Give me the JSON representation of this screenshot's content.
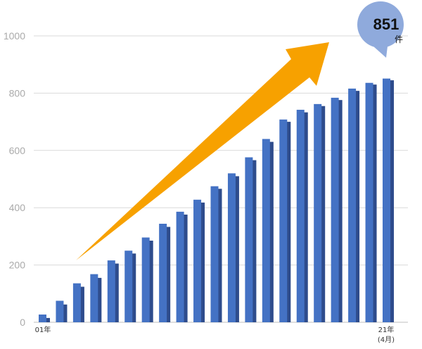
{
  "chart_data": {
    "type": "bar",
    "ylim": [
      0,
      1000
    ],
    "yticks": [
      0,
      200,
      400,
      600,
      800,
      1000
    ],
    "grid": true,
    "x_labels": {
      "first": "01年",
      "last_line1": "21年",
      "last_line2": "(4月)"
    },
    "series": [
      {
        "values": [
          27,
          75,
          136,
          168,
          216,
          250,
          296,
          344,
          386,
          428,
          475,
          520,
          576,
          640,
          708,
          742,
          762,
          784,
          816,
          836,
          851
        ]
      },
      {
        "values": [
          15,
          62,
          124,
          155,
          205,
          240,
          285,
          333,
          376,
          418,
          466,
          510,
          566,
          630,
          700,
          733,
          755,
          776,
          808,
          830,
          845
        ]
      }
    ],
    "colors": {
      "series1": "#4472c4",
      "series2": "#2e4c8c",
      "arrow": "#f7a100",
      "callout": "#8faadc",
      "grid": "#d9d9d9"
    },
    "callout": {
      "value": "851",
      "unit": "件"
    }
  }
}
